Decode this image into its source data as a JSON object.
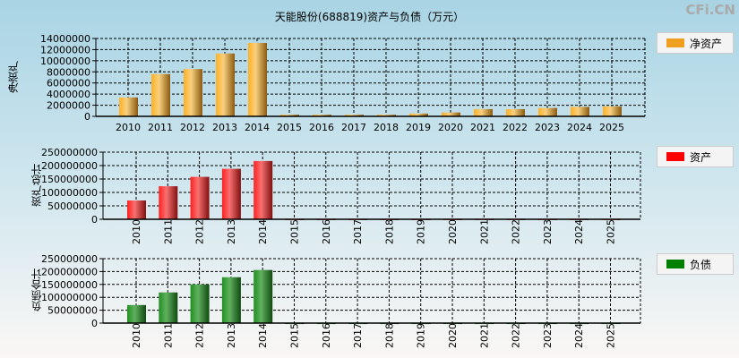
{
  "title": "天能股份(688819)资产与负债（万元）",
  "watermark": "CFi.CN",
  "chart_data": [
    {
      "type": "bar",
      "ylabel": "净资产",
      "legend": "净资产",
      "color": "#f0a020",
      "ylim": [
        0,
        14000000
      ],
      "yticks": [
        0,
        2000000,
        4000000,
        6000000,
        8000000,
        10000000,
        12000000,
        14000000
      ],
      "categories": [
        "2010",
        "2011",
        "2012",
        "2013",
        "2014",
        "2015",
        "2016",
        "2017",
        "2018",
        "2019",
        "2020",
        "2021",
        "2022",
        "2023",
        "2024",
        "2025"
      ],
      "values": [
        3400000,
        7600000,
        8500000,
        11300000,
        13200000,
        300000,
        300000,
        300000,
        300000,
        500000,
        700000,
        1300000,
        1300000,
        1500000,
        1700000,
        1800000
      ]
    },
    {
      "type": "bar",
      "ylabel": "资产总计",
      "legend": "资产",
      "color": "#ff0000",
      "ylim": [
        0,
        250000000
      ],
      "yticks": [
        0,
        50000000,
        100000000,
        150000000,
        200000000,
        250000000
      ],
      "categories": [
        "2010",
        "2011",
        "2012",
        "2013",
        "2014",
        "2015",
        "2016",
        "2017",
        "2018",
        "2019",
        "2020",
        "2021",
        "2022",
        "2023",
        "2024",
        "2025"
      ],
      "values": [
        70000000,
        123000000,
        158000000,
        188000000,
        217000000,
        2000000,
        2000000,
        2000000,
        2000000,
        2000000,
        2000000,
        2000000,
        2000000,
        2000000,
        2000000,
        2000000
      ]
    },
    {
      "type": "bar",
      "ylabel": "负债合计",
      "legend": "负债",
      "color": "#008000",
      "ylim": [
        0,
        250000000
      ],
      "yticks": [
        0,
        50000000,
        100000000,
        150000000,
        200000000,
        250000000
      ],
      "categories": [
        "2010",
        "2011",
        "2012",
        "2013",
        "2014",
        "2015",
        "2016",
        "2017",
        "2018",
        "2019",
        "2020",
        "2021",
        "2022",
        "2023",
        "2024",
        "2025"
      ],
      "values": [
        70000000,
        119000000,
        150000000,
        178000000,
        206000000,
        1500000,
        1500000,
        1500000,
        1500000,
        1500000,
        1500000,
        1500000,
        1500000,
        1500000,
        1500000,
        1500000
      ]
    }
  ]
}
